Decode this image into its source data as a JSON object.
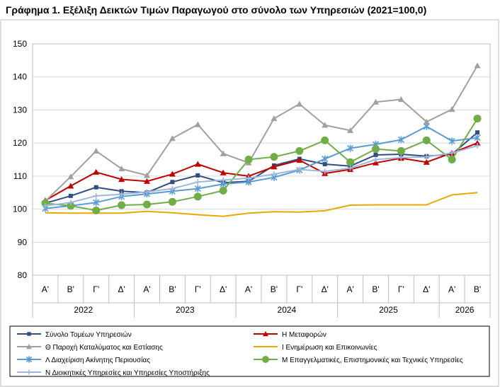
{
  "title": "Γράφημα 1. Εξέλιξη Δεικτών Τιμών Παραγωγού στο σύνολο των Υπηρεσιών (2021=100,0)",
  "chart_data": {
    "type": "line",
    "title": "Γράφημα 1. Εξέλιξη Δεικτών Τιμών Παραγωγού στο σύνολο των Υπηρεσιών (2021=100,0)",
    "x": [
      "Α'",
      "Β'",
      "Γ'",
      "Δ'",
      "Α'",
      "Β'",
      "Γ'",
      "Δ'",
      "Α'",
      "Β'",
      "Γ'",
      "Δ'",
      "Α'",
      "Β'",
      "Γ'",
      "Δ'",
      "Α'",
      "Β'"
    ],
    "years": [
      {
        "label": "2022",
        "count": 4
      },
      {
        "label": "2023",
        "count": 4
      },
      {
        "label": "2024",
        "count": 4
      },
      {
        "label": "2025",
        "count": 4
      },
      {
        "label": "2026",
        "count": 2
      }
    ],
    "ylim": [
      80,
      150
    ],
    "yticks": [
      80,
      90,
      100,
      110,
      120,
      130,
      140,
      150
    ],
    "grid": true,
    "legend_position": "bottom",
    "series": [
      {
        "name": "Σύνολο Τομέων Υπηρεσιών",
        "color": "#2f4f7f",
        "marker": "square",
        "values": [
          101.8,
          104.0,
          106.6,
          105.4,
          105.0,
          108.2,
          110.2,
          108.0,
          108.4,
          113.2,
          115.2,
          113.6,
          113.0,
          116.4,
          116.6,
          116.0,
          116.6,
          123.2
        ]
      },
      {
        "name": "Η Μεταφορών",
        "color": "#c00000",
        "marker": "triangle",
        "values": [
          102.6,
          107.0,
          111.2,
          109.0,
          108.4,
          110.6,
          113.6,
          111.0,
          110.0,
          112.8,
          114.8,
          110.8,
          112.0,
          114.0,
          115.4,
          114.2,
          117.0,
          120.0
        ]
      },
      {
        "name": "Θ Παροχή Καταλύματος και Εστίασης",
        "color": "#a0a0a0",
        "marker": "triangle",
        "values": [
          102.4,
          109.8,
          117.6,
          112.2,
          110.2,
          121.4,
          125.6,
          116.8,
          114.0,
          127.4,
          131.8,
          125.4,
          123.8,
          132.4,
          133.2,
          126.4,
          130.2,
          143.4
        ]
      },
      {
        "name": "Ι Ενημέρωση και Επικοινωνίες",
        "color": "#e8a800",
        "marker": "line",
        "values": [
          98.9,
          98.8,
          98.8,
          98.8,
          99.3,
          98.9,
          98.3,
          97.8,
          98.8,
          99.2,
          99.1,
          99.5,
          101.2,
          101.3,
          101.3,
          101.3,
          104.3,
          105.0
        ]
      },
      {
        "name": "Λ Διαχείριση Ακίνητης Περιουσίας",
        "color": "#5b9bd5",
        "marker": "star",
        "values": [
          100.2,
          101.0,
          102.0,
          103.8,
          104.6,
          105.4,
          106.2,
          107.6,
          108.2,
          109.6,
          111.8,
          115.2,
          118.4,
          119.6,
          121.0,
          125.0,
          120.6,
          121.6
        ]
      },
      {
        "name": "Μ Επαγγελματικές, Επιστημονικές και Τεχνικές Υπηρεσίες",
        "color": "#70ad47",
        "marker": "circle",
        "values": [
          101.8,
          101.0,
          99.6,
          101.2,
          101.4,
          102.2,
          103.8,
          105.6,
          115.0,
          115.8,
          117.6,
          120.8,
          114.2,
          118.2,
          117.6,
          120.8,
          115.0,
          127.4
        ]
      },
      {
        "name": "Ν Διοικητικές Υπηρεσίες και Υπηρεσίες Υποστήριξης",
        "color": "#9fb7e0",
        "marker": "plus",
        "values": [
          101.0,
          102.0,
          104.0,
          104.5,
          105.2,
          106.2,
          108.2,
          108.8,
          109.4,
          110.6,
          112.0,
          111.4,
          112.4,
          115.0,
          115.6,
          115.8,
          117.0,
          119.2
        ]
      }
    ]
  }
}
